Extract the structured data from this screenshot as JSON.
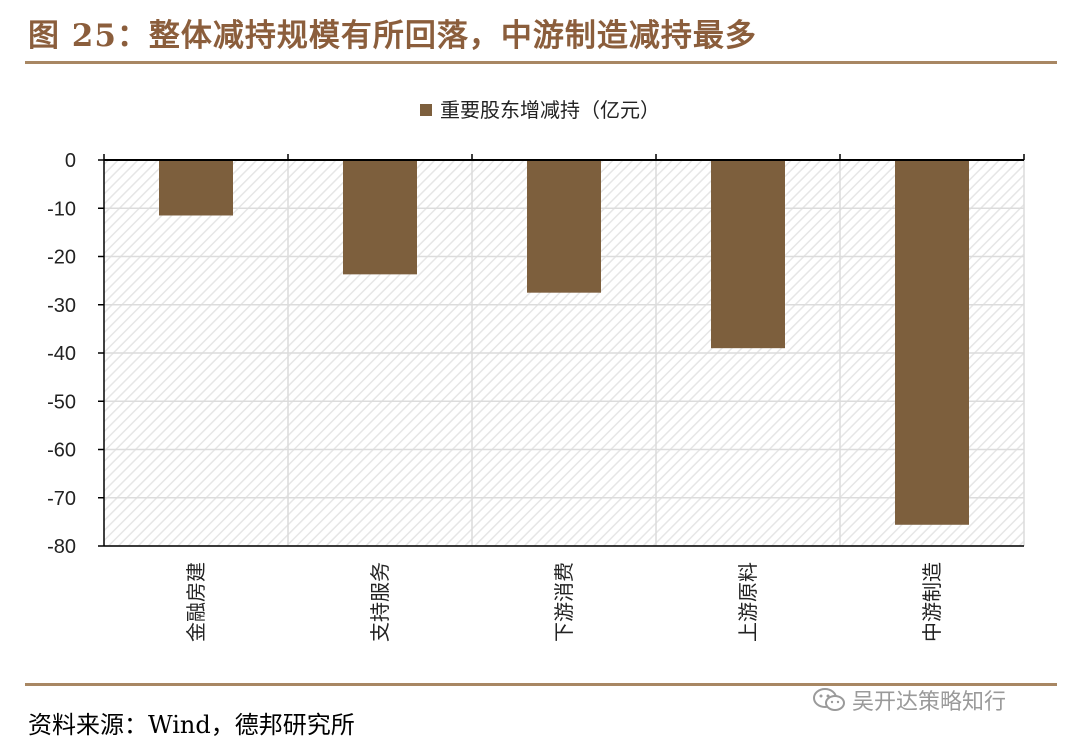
{
  "title": "图 25：整体减持规模有所回落，中游制造减持最多",
  "legend": {
    "label": "重要股东增减持（亿元）",
    "color": "#7d5f3d"
  },
  "source": "资料来源：Wind，德邦研究所",
  "watermark": {
    "text": "吴开达策略知行",
    "icon": "wechat-icon"
  },
  "chart_data": {
    "type": "bar",
    "categories": [
      "金融房建",
      "支持服务",
      "下游消费",
      "上游原料",
      "中游制造"
    ],
    "series": [
      {
        "name": "重要股东增减持（亿元）",
        "values": [
          -11.5,
          -23.7,
          -27.5,
          -39.0,
          -75.6
        ]
      }
    ],
    "ylim": [
      -80,
      0
    ],
    "yticks": [
      0,
      -10,
      -20,
      -30,
      -40,
      -50,
      -60,
      -70,
      -80
    ],
    "xlabel": "",
    "ylabel": "",
    "grid": true,
    "legend_position": "top-center",
    "bar_color": "#7d5f3d"
  }
}
